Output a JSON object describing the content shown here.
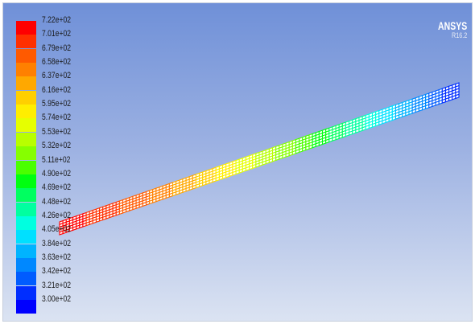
{
  "logo": {
    "name": "ANSYS",
    "release": "R16.2"
  },
  "colormap": {
    "labels": [
      "7.22e+02",
      "7.01e+02",
      "6.79e+02",
      "6.58e+02",
      "6.37e+02",
      "6.16e+02",
      "5.95e+02",
      "5.74e+02",
      "5.53e+02",
      "5.32e+02",
      "5.11e+02",
      "4.90e+02",
      "4.69e+02",
      "4.48e+02",
      "4.26e+02",
      "4.05e+02",
      "3.84e+02",
      "3.63e+02",
      "3.42e+02",
      "3.21e+02",
      "3.00e+02"
    ],
    "colors": [
      "#ff0000",
      "#ff3000",
      "#ff5a00",
      "#ff8000",
      "#ffa800",
      "#ffcf00",
      "#ffee00",
      "#e6ff00",
      "#b8ff00",
      "#86ff00",
      "#4aff00",
      "#00ff10",
      "#00ff60",
      "#00ffa0",
      "#00ffe0",
      "#00e0ff",
      "#00b4ff",
      "#0088ff",
      "#005cff",
      "#002eff",
      "#0000ff"
    ]
  },
  "geometry": {
    "color_min": 300,
    "color_max": 722
  }
}
